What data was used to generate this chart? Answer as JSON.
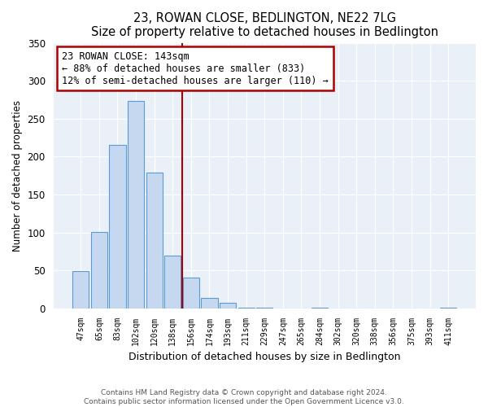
{
  "title": "23, ROWAN CLOSE, BEDLINGTON, NE22 7LG",
  "subtitle": "Size of property relative to detached houses in Bedlington",
  "xlabel": "Distribution of detached houses by size in Bedlington",
  "ylabel": "Number of detached properties",
  "bar_labels": [
    "47sqm",
    "65sqm",
    "83sqm",
    "102sqm",
    "120sqm",
    "138sqm",
    "156sqm",
    "174sqm",
    "193sqm",
    "211sqm",
    "229sqm",
    "247sqm",
    "265sqm",
    "284sqm",
    "302sqm",
    "320sqm",
    "338sqm",
    "356sqm",
    "375sqm",
    "393sqm",
    "411sqm"
  ],
  "bar_values": [
    49,
    101,
    215,
    273,
    179,
    70,
    40,
    14,
    7,
    1,
    1,
    0,
    0,
    1,
    0,
    0,
    0,
    0,
    0,
    0,
    1
  ],
  "bar_color": "#c5d8f0",
  "bar_edge_color": "#5b9bd5",
  "vline_x": 5.5,
  "vline_color": "#aa0000",
  "annotation_title": "23 ROWAN CLOSE: 143sqm",
  "annotation_line1": "← 88% of detached houses are smaller (833)",
  "annotation_line2": "12% of semi-detached houses are larger (110) →",
  "annotation_box_edge": "#aa0000",
  "ylim": [
    0,
    350
  ],
  "yticks": [
    0,
    50,
    100,
    150,
    200,
    250,
    300,
    350
  ],
  "footer1": "Contains HM Land Registry data © Crown copyright and database right 2024.",
  "footer2": "Contains public sector information licensed under the Open Government Licence v3.0.",
  "bg_color": "#e8eef5",
  "plot_bg_color": "#eaf0f7"
}
